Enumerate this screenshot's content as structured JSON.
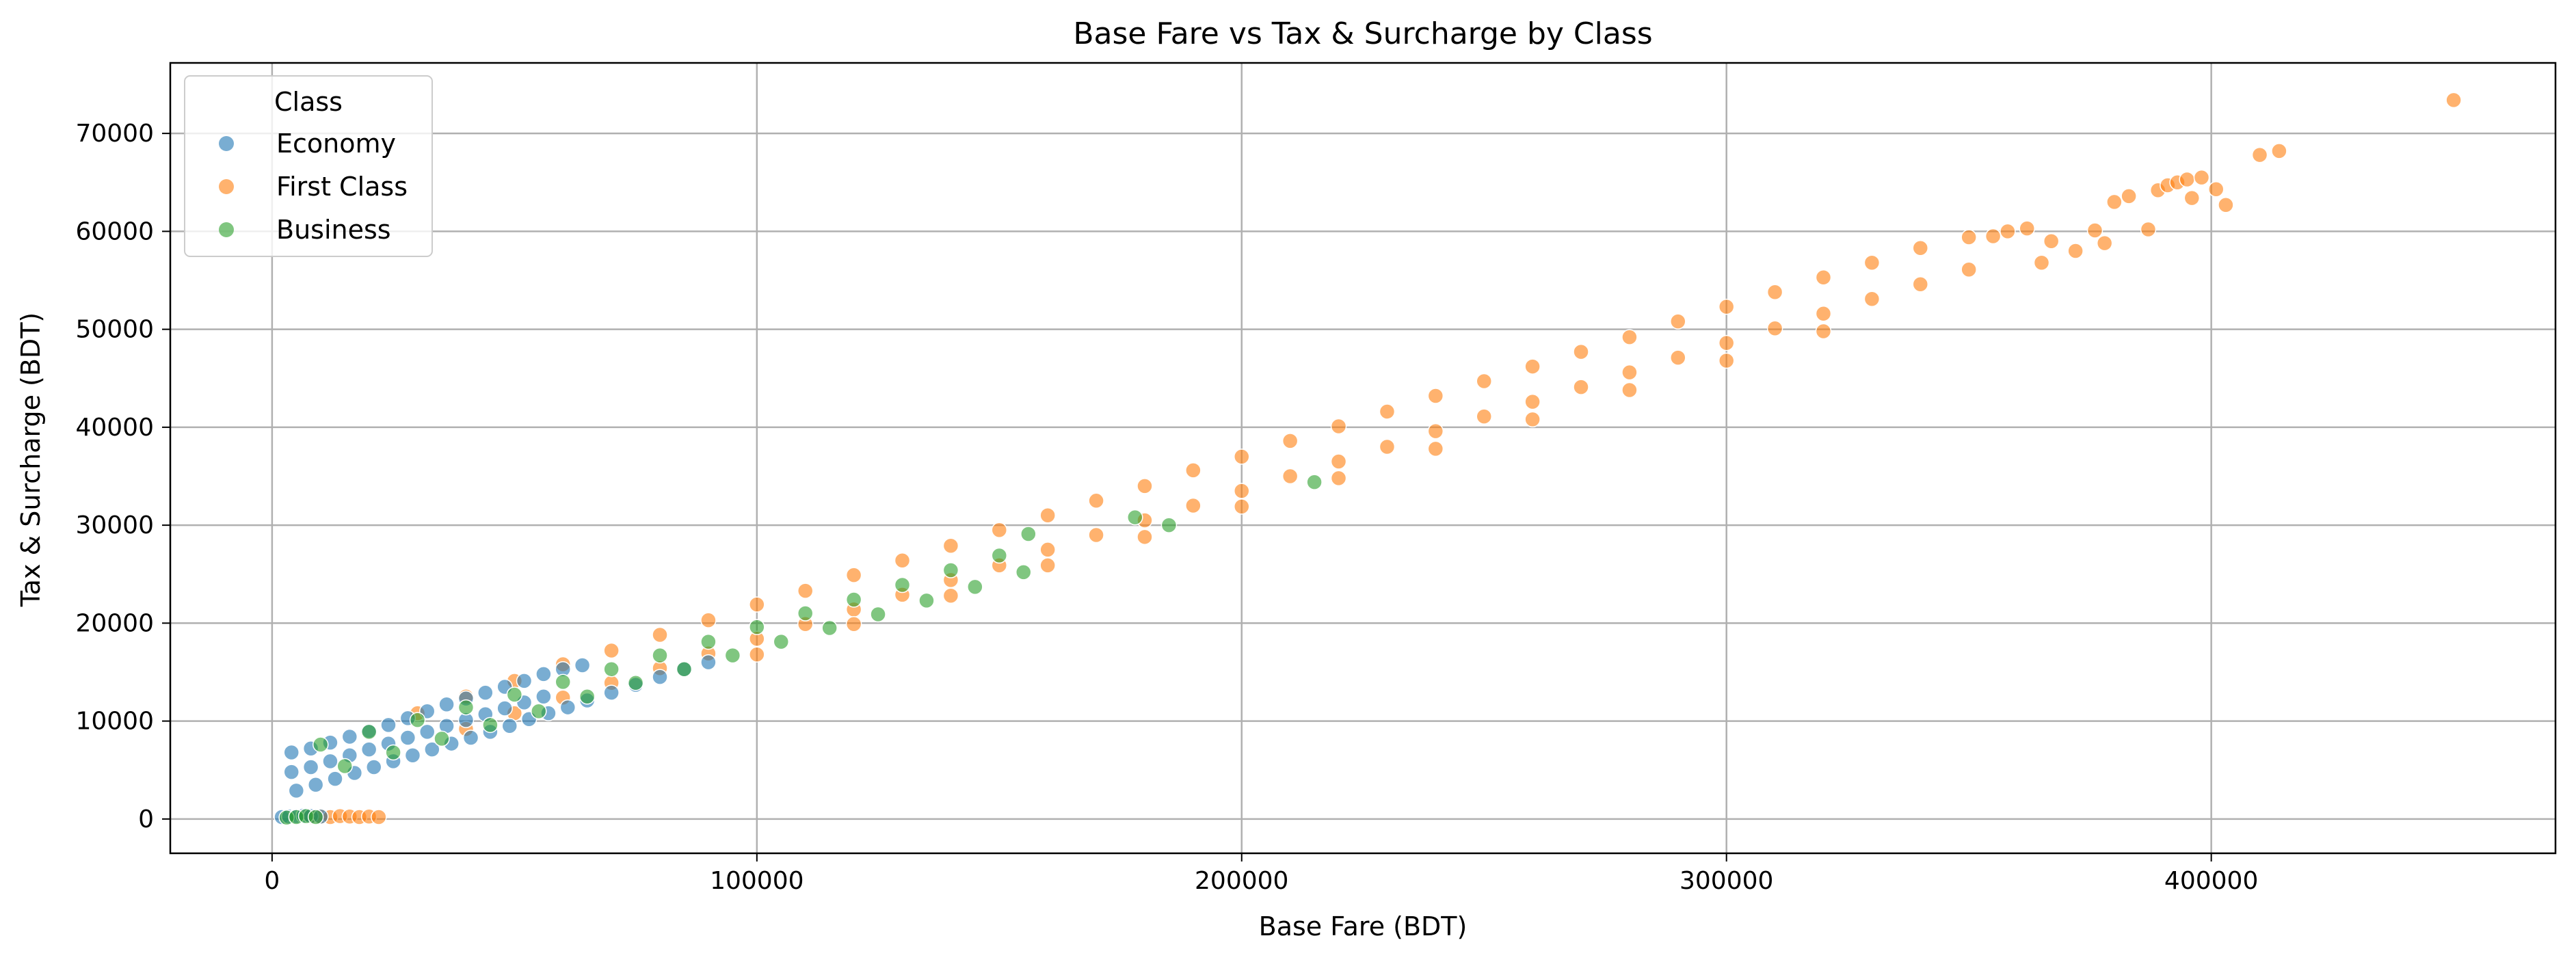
{
  "chart_data": {
    "type": "scatter",
    "title": "Base Fare vs Tax & Surcharge by Class",
    "xlabel": "Base Fare (BDT)",
    "ylabel": "Tax & Surcharge (BDT)",
    "xlim": [
      -21000,
      471000
    ],
    "ylim": [
      -3500,
      77200
    ],
    "xticks": [
      0,
      100000,
      200000,
      300000,
      400000
    ],
    "yticks": [
      0,
      10000,
      20000,
      30000,
      40000,
      50000,
      60000,
      70000
    ],
    "tick_labels_x": [
      "0",
      "100000",
      "200000",
      "300000",
      "400000"
    ],
    "tick_labels_y": [
      "0",
      "10000",
      "20000",
      "30000",
      "40000",
      "50000",
      "60000",
      "70000"
    ],
    "grid": true,
    "legend": {
      "title": "Class",
      "placement": "top-left"
    },
    "series": [
      {
        "name": "Economy",
        "color": "#1f77b4",
        "points": [
          [
            2000,
            200
          ],
          [
            3500,
            250
          ],
          [
            5000,
            300
          ],
          [
            6500,
            350
          ],
          [
            8000,
            300
          ],
          [
            10000,
            250
          ],
          [
            4000,
            6800
          ],
          [
            8000,
            7200
          ],
          [
            12000,
            7800
          ],
          [
            16000,
            8400
          ],
          [
            20000,
            9000
          ],
          [
            24000,
            9600
          ],
          [
            28000,
            10300
          ],
          [
            32000,
            11000
          ],
          [
            36000,
            11700
          ],
          [
            40000,
            12300
          ],
          [
            44000,
            12900
          ],
          [
            48000,
            13500
          ],
          [
            52000,
            14100
          ],
          [
            56000,
            14800
          ],
          [
            60000,
            15300
          ],
          [
            64000,
            15700
          ],
          [
            4000,
            4800
          ],
          [
            8000,
            5300
          ],
          [
            12000,
            5900
          ],
          [
            16000,
            6500
          ],
          [
            20000,
            7100
          ],
          [
            24000,
            7700
          ],
          [
            28000,
            8300
          ],
          [
            32000,
            8900
          ],
          [
            36000,
            9500
          ],
          [
            40000,
            10100
          ],
          [
            44000,
            10700
          ],
          [
            48000,
            11300
          ],
          [
            52000,
            11900
          ],
          [
            56000,
            12500
          ],
          [
            5000,
            2900
          ],
          [
            9000,
            3500
          ],
          [
            13000,
            4100
          ],
          [
            17000,
            4700
          ],
          [
            21000,
            5300
          ],
          [
            25000,
            5900
          ],
          [
            29000,
            6500
          ],
          [
            33000,
            7100
          ],
          [
            37000,
            7700
          ],
          [
            41000,
            8300
          ],
          [
            45000,
            8900
          ],
          [
            49000,
            9500
          ],
          [
            53000,
            10200
          ],
          [
            57000,
            10800
          ],
          [
            61000,
            11400
          ],
          [
            65000,
            12100
          ],
          [
            70000,
            12900
          ],
          [
            75000,
            13700
          ],
          [
            80000,
            14500
          ],
          [
            85000,
            15300
          ],
          [
            90000,
            16000
          ]
        ]
      },
      {
        "name": "First Class",
        "color": "#ff7f0e",
        "points": [
          [
            8000,
            200
          ],
          [
            10000,
            250
          ],
          [
            12000,
            200
          ],
          [
            14000,
            300
          ],
          [
            16000,
            250
          ],
          [
            18000,
            200
          ],
          [
            20000,
            250
          ],
          [
            22000,
            200
          ],
          [
            30000,
            10800
          ],
          [
            40000,
            12500
          ],
          [
            50000,
            14100
          ],
          [
            60000,
            15800
          ],
          [
            70000,
            17200
          ],
          [
            80000,
            18800
          ],
          [
            90000,
            20300
          ],
          [
            100000,
            21900
          ],
          [
            110000,
            23300
          ],
          [
            120000,
            24900
          ],
          [
            130000,
            26400
          ],
          [
            140000,
            27900
          ],
          [
            150000,
            29500
          ],
          [
            160000,
            31000
          ],
          [
            170000,
            32500
          ],
          [
            180000,
            34000
          ],
          [
            190000,
            35600
          ],
          [
            200000,
            37000
          ],
          [
            210000,
            38600
          ],
          [
            220000,
            40100
          ],
          [
            230000,
            41600
          ],
          [
            240000,
            43200
          ],
          [
            250000,
            44700
          ],
          [
            260000,
            46200
          ],
          [
            270000,
            47700
          ],
          [
            280000,
            49200
          ],
          [
            290000,
            50800
          ],
          [
            300000,
            52300
          ],
          [
            310000,
            53800
          ],
          [
            320000,
            55300
          ],
          [
            330000,
            56800
          ],
          [
            340000,
            58300
          ],
          [
            350000,
            59400
          ],
          [
            40000,
            9200
          ],
          [
            50000,
            10800
          ],
          [
            60000,
            12400
          ],
          [
            70000,
            13900
          ],
          [
            80000,
            15400
          ],
          [
            90000,
            16900
          ],
          [
            100000,
            18400
          ],
          [
            110000,
            19900
          ],
          [
            120000,
            21400
          ],
          [
            130000,
            22900
          ],
          [
            140000,
            24400
          ],
          [
            150000,
            25900
          ],
          [
            160000,
            27500
          ],
          [
            170000,
            29000
          ],
          [
            180000,
            30500
          ],
          [
            190000,
            32000
          ],
          [
            200000,
            33500
          ],
          [
            210000,
            35000
          ],
          [
            220000,
            36500
          ],
          [
            230000,
            38000
          ],
          [
            240000,
            39600
          ],
          [
            250000,
            41100
          ],
          [
            260000,
            42600
          ],
          [
            270000,
            44100
          ],
          [
            280000,
            45600
          ],
          [
            290000,
            47100
          ],
          [
            300000,
            48600
          ],
          [
            310000,
            50100
          ],
          [
            320000,
            51600
          ],
          [
            330000,
            53100
          ],
          [
            340000,
            54600
          ],
          [
            350000,
            56100
          ],
          [
            100000,
            16800
          ],
          [
            120000,
            19900
          ],
          [
            140000,
            22800
          ],
          [
            160000,
            25900
          ],
          [
            180000,
            28800
          ],
          [
            200000,
            31900
          ],
          [
            220000,
            34800
          ],
          [
            240000,
            37800
          ],
          [
            260000,
            40800
          ],
          [
            280000,
            43800
          ],
          [
            300000,
            46800
          ],
          [
            320000,
            49800
          ],
          [
            355000,
            59500
          ],
          [
            358000,
            60000
          ],
          [
            362000,
            60300
          ],
          [
            365000,
            56800
          ],
          [
            367000,
            59000
          ],
          [
            372000,
            58000
          ],
          [
            376000,
            60100
          ],
          [
            378000,
            58800
          ],
          [
            380000,
            63000
          ],
          [
            383000,
            63600
          ],
          [
            387000,
            60200
          ],
          [
            389000,
            64200
          ],
          [
            391000,
            64700
          ],
          [
            393000,
            65000
          ],
          [
            395000,
            65300
          ],
          [
            396000,
            63400
          ],
          [
            398000,
            65500
          ],
          [
            401000,
            64300
          ],
          [
            403000,
            62700
          ],
          [
            410000,
            67800
          ],
          [
            414000,
            68200
          ],
          [
            450000,
            73400
          ]
        ]
      },
      {
        "name": "Business",
        "color": "#2ca02c",
        "points": [
          [
            3000,
            150
          ],
          [
            5000,
            200
          ],
          [
            7000,
            300
          ],
          [
            9000,
            200
          ],
          [
            10000,
            7600
          ],
          [
            20000,
            8900
          ],
          [
            30000,
            10100
          ],
          [
            40000,
            11400
          ],
          [
            50000,
            12700
          ],
          [
            60000,
            14000
          ],
          [
            70000,
            15300
          ],
          [
            80000,
            16700
          ],
          [
            90000,
            18100
          ],
          [
            100000,
            19600
          ],
          [
            110000,
            21000
          ],
          [
            120000,
            22400
          ],
          [
            130000,
            23900
          ],
          [
            140000,
            25400
          ],
          [
            150000,
            26900
          ],
          [
            156000,
            29100
          ],
          [
            15000,
            5400
          ],
          [
            25000,
            6800
          ],
          [
            35000,
            8200
          ],
          [
            45000,
            9600
          ],
          [
            55000,
            11000
          ],
          [
            65000,
            12500
          ],
          [
            75000,
            13900
          ],
          [
            85000,
            15300
          ],
          [
            95000,
            16700
          ],
          [
            105000,
            18100
          ],
          [
            115000,
            19500
          ],
          [
            125000,
            20900
          ],
          [
            135000,
            22300
          ],
          [
            145000,
            23700
          ],
          [
            155000,
            25200
          ],
          [
            178000,
            30800
          ],
          [
            185000,
            30000
          ],
          [
            215000,
            34400
          ]
        ]
      }
    ]
  }
}
